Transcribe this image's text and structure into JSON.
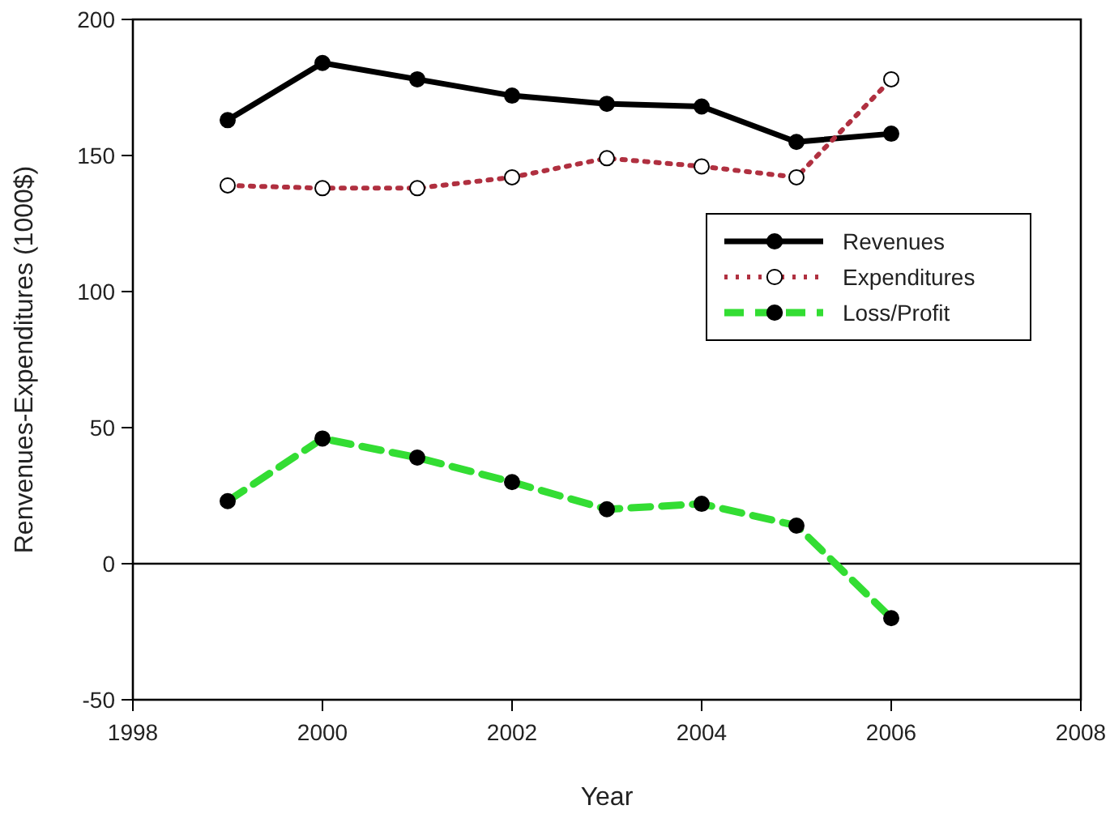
{
  "chart_data": {
    "type": "line",
    "xlabel": "Year",
    "ylabel": "Renvenues-Expenditures (1000$)",
    "x": [
      1999,
      2000,
      2001,
      2002,
      2003,
      2004,
      2005,
      2006
    ],
    "xlim": [
      1998,
      2008
    ],
    "xticks": [
      1998,
      2000,
      2002,
      2004,
      2006,
      2008
    ],
    "ylim": [
      -50,
      200
    ],
    "yticks": [
      -50,
      0,
      50,
      100,
      150,
      200
    ],
    "series": [
      {
        "name": "Revenues",
        "color": "#000000",
        "values": [
          163,
          184,
          178,
          172,
          169,
          168,
          155,
          158
        ],
        "line_style": "solid",
        "marker": "circle"
      },
      {
        "name": "Expenditures",
        "color": "#b03040",
        "values": [
          139,
          138,
          138,
          142,
          149,
          146,
          142,
          178
        ],
        "line_style": "dotted",
        "marker": "circle"
      },
      {
        "name": "Loss/Profit",
        "color": "#33dd33",
        "values": [
          23,
          46,
          39,
          30,
          20,
          22,
          14,
          -20
        ],
        "line_style": "dashed",
        "marker": "circle"
      }
    ],
    "ref_lines": [
      {
        "axis": "y",
        "value": 0,
        "color": "#000000"
      }
    ],
    "grid": false,
    "legend": "right"
  }
}
